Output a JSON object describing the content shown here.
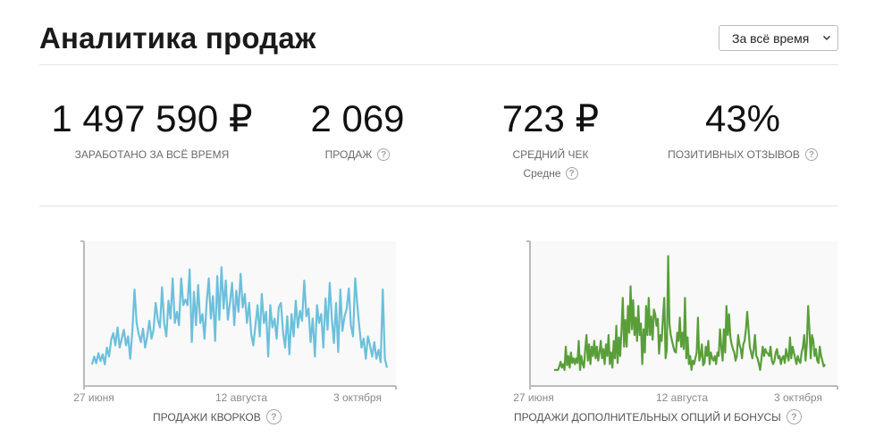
{
  "header": {
    "title": "Аналитика продаж",
    "period_select": {
      "selected": "За всё время"
    }
  },
  "stats": [
    {
      "value": "1 497 590 ₽",
      "label": "ЗАРАБОТАНО ЗА ВСЁ ВРЕМЯ"
    },
    {
      "value": "2 069",
      "label": "ПРОДАЖ"
    },
    {
      "value": "723 ₽",
      "label": "СРЕДНИЙ ЧЕК",
      "sub": "Средне"
    },
    {
      "value": "43%",
      "label": "ПОЗИТИВНЫХ ОТЗЫВОВ"
    }
  ],
  "charts": {
    "kwork_label": "ПРОДАЖИ КВОРКОВ",
    "options_label": "ПРОДАЖИ ДОПОЛНИТЕЛЬНЫХ ОПЦИЙ И БОНУСЫ"
  },
  "colors": {
    "kwork_line": "#6cc0db",
    "options_line": "#5a9e3a",
    "plot_bg": "#f9f9f9",
    "axis": "#bbbbbb"
  },
  "chart_data": [
    {
      "type": "line",
      "title": "ПРОДАЖИ КВОРКОВ",
      "x_ticks": [
        "27 июня",
        "12 августа",
        "3 октября"
      ],
      "y_relative_range": [
        0,
        1
      ],
      "series": [
        {
          "color": "#6cc0db",
          "values": [
            0.05,
            0.12,
            0.06,
            0.15,
            0.08,
            0.14,
            0.05,
            0.2,
            0.12,
            0.27,
            0.33,
            0.22,
            0.38,
            0.2,
            0.28,
            0.36,
            0.22,
            0.3,
            0.1,
            0.35,
            0.72,
            0.42,
            0.32,
            0.25,
            0.37,
            0.2,
            0.3,
            0.44,
            0.28,
            0.36,
            0.6,
            0.45,
            0.38,
            0.74,
            0.42,
            0.3,
            0.62,
            0.46,
            0.82,
            0.42,
            0.52,
            0.4,
            0.82,
            0.58,
            0.63,
            0.58,
            0.9,
            0.25,
            0.7,
            0.4,
            0.76,
            0.42,
            0.5,
            0.28,
            0.6,
            0.82,
            0.46,
            0.66,
            0.26,
            0.84,
            0.45,
            0.92,
            0.55,
            0.8,
            0.45,
            0.6,
            0.78,
            0.4,
            0.71,
            0.52,
            0.86,
            0.56,
            0.68,
            0.42,
            0.6,
            0.32,
            0.22,
            0.4,
            0.58,
            0.3,
            0.68,
            0.42,
            0.52,
            0.12,
            0.58,
            0.38,
            0.46,
            0.28,
            0.56,
            0.6,
            0.34,
            0.2,
            0.48,
            0.14,
            0.5,
            0.3,
            0.62,
            0.38,
            0.53,
            0.44,
            0.8,
            0.48,
            0.55,
            0.25,
            0.46,
            0.12,
            0.58,
            0.42,
            0.5,
            0.2,
            0.64,
            0.36,
            0.78,
            0.46,
            0.24,
            0.6,
            0.16,
            0.72,
            0.35,
            0.48,
            0.55,
            0.73,
            0.4,
            0.3,
            0.82,
            0.58,
            0.38,
            0.2,
            0.28,
            0.1,
            0.3,
            0.22,
            0.12,
            0.25,
            0.1,
            0.18,
            0.07,
            0.72,
            0.1,
            0.02
          ]
        }
      ]
    },
    {
      "type": "line",
      "title": "ПРОДАЖИ ДОПОЛНИТЕЛЬНЫХ ОПЦИЙ И БОНУСЫ",
      "x_ticks": [
        "27 июня",
        "12 августа",
        "3 октября"
      ],
      "y_relative_range": [
        0,
        1
      ],
      "series": [
        {
          "color": "#5a9e3a",
          "values": [
            0.0,
            0.0,
            0.0,
            0.0,
            0.03,
            0.07,
            0.02,
            0.05,
            0.0,
            0.2,
            0.04,
            0.12,
            0.02,
            0.15,
            0.06,
            0.1,
            0.05,
            0.1,
            0.06,
            0.25,
            0.0,
            0.12,
            0.05,
            0.02,
            0.18,
            0.3,
            0.08,
            0.22,
            0.05,
            0.2,
            0.12,
            0.25,
            0.1,
            0.2,
            0.08,
            0.15,
            0.25,
            0.1,
            0.18,
            0.05,
            0.22,
            0.12,
            0.3,
            0.05,
            0.15,
            0.02,
            0.25,
            0.1,
            0.38,
            0.06,
            0.28,
            0.12,
            0.35,
            0.62,
            0.2,
            0.43,
            0.2,
            0.55,
            0.32,
            0.72,
            0.35,
            0.6,
            0.3,
            0.45,
            0.25,
            0.55,
            0.3,
            0.4,
            0.05,
            0.35,
            0.15,
            0.55,
            0.3,
            0.62,
            0.3,
            0.46,
            0.26,
            0.52,
            0.48,
            0.38,
            0.44,
            0.14,
            0.3,
            0.25,
            0.46,
            0.62,
            0.1,
            0.18,
            0.98,
            0.4,
            0.3,
            0.25,
            0.2,
            0.16,
            0.15,
            0.32,
            0.25,
            0.45,
            0.2,
            0.32,
            0.18,
            0.62,
            0.1,
            0.28,
            0.05,
            0.12,
            0.0,
            0.08,
            0.05,
            0.1,
            0.15,
            0.45,
            0.08,
            0.12,
            0.22,
            0.04,
            0.06,
            0.2,
            0.12,
            0.25,
            0.05,
            0.15,
            0.1,
            0.08,
            0.12,
            0.05,
            0.15,
            0.12,
            0.35,
            0.2,
            0.08,
            0.35,
            0.15,
            0.55,
            0.3,
            0.48,
            0.28,
            0.22,
            0.18,
            0.15,
            0.08,
            0.12,
            0.3,
            0.22,
            0.18,
            0.1,
            0.22,
            0.25,
            0.35,
            0.5,
            0.35,
            0.2,
            0.15,
            0.1,
            0.18,
            0.3,
            0.12,
            0.1,
            0.05,
            0.0,
            0.1,
            0.2,
            0.12,
            0.18,
            0.15,
            0.14,
            0.12,
            0.2,
            0.08,
            0.05,
            0.08,
            0.15,
            0.18,
            0.1,
            0.12,
            0.05,
            0.1,
            0.12,
            0.06,
            0.18,
            0.12,
            0.08,
            0.28,
            0.1,
            0.2,
            0.15,
            0.1,
            0.05,
            0.12,
            0.08,
            0.06,
            0.15,
            0.2,
            0.3,
            0.08,
            0.22,
            0.55,
            0.35,
            0.1,
            0.3,
            0.25,
            0.12,
            0.18,
            0.08,
            0.06,
            0.2,
            0.12,
            0.08,
            0.03,
            0.05
          ]
        }
      ]
    }
  ]
}
